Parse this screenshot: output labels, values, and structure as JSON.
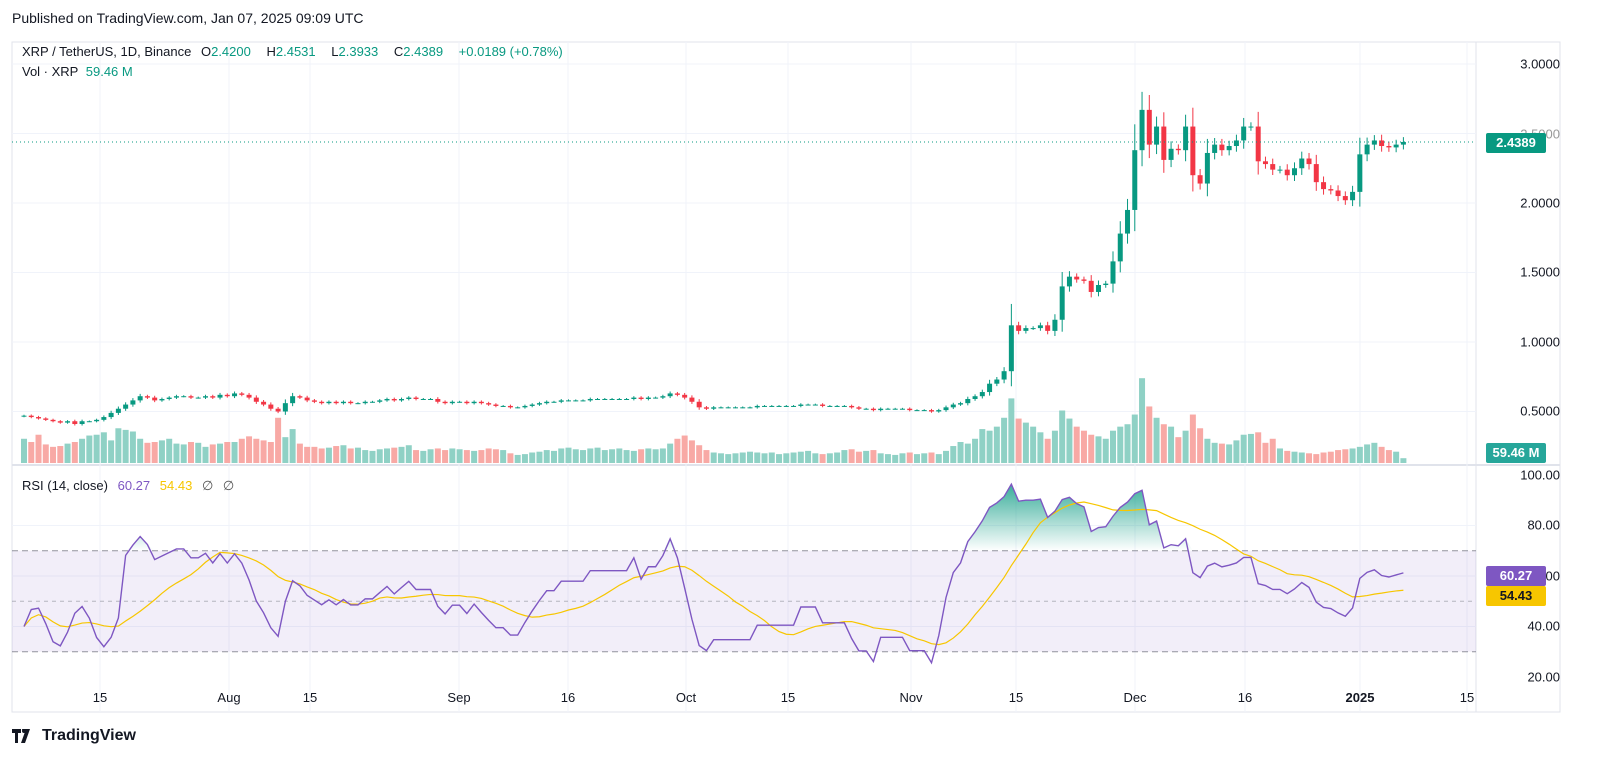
{
  "published": "Published on TradingView.com, Jan 07, 2025 09:09 UTC",
  "legend": {
    "symbol": "XRP / TetherUS, 1D, Binance",
    "o_label": "O",
    "o": "2.4200",
    "h_label": "H",
    "h": "2.4531",
    "l_label": "L",
    "l": "2.3933",
    "c_label": "C",
    "c": "2.4389",
    "change": "+0.0189 (+0.78%)",
    "vol_label": "Vol · XRP",
    "vol": "59.46 M"
  },
  "rsi_legend": {
    "label": "RSI (14, close)",
    "rsi": "60.27",
    "ma": "54.43",
    "na1": "∅",
    "na2": "∅"
  },
  "badges": {
    "price": "2.4389",
    "volume": "59.46 M",
    "rsi": "60.27",
    "rsi_ma": "54.43"
  },
  "footer": {
    "brand": "TradingView",
    "logo_text": "TV"
  },
  "colors": {
    "up": "#089981",
    "down": "#f23645",
    "vol_up": "#8fd1c5",
    "vol_down": "#f8a9a5",
    "rsi": "#7e57c2",
    "rsi_ma": "#f7c600"
  },
  "chart_data": {
    "type": "candlestick",
    "title": "XRP / TetherUS, 1D, Binance",
    "start_date": "2024-07-01",
    "end_date": "2025-01-07",
    "price_axis": [
      "3.0000",
      "2.5000",
      "2.0000",
      "1.5000",
      "1.0000",
      "0.5000"
    ],
    "rsi_axis": [
      "100.00",
      "80.00",
      "60.00",
      "40.00",
      "20.00"
    ],
    "x_ticks": [
      "15",
      "Aug",
      "15",
      "Sep",
      "16",
      "Oct",
      "15",
      "Nov",
      "15",
      "Dec",
      "16",
      "2025",
      "15"
    ],
    "rsi_levels": [
      70,
      50,
      30
    ],
    "rsi_period": 14,
    "close": [
      0.47,
      0.46,
      0.45,
      0.44,
      0.43,
      0.42,
      0.43,
      0.41,
      0.43,
      0.43,
      0.44,
      0.46,
      0.49,
      0.52,
      0.55,
      0.58,
      0.61,
      0.6,
      0.58,
      0.59,
      0.6,
      0.61,
      0.61,
      0.6,
      0.6,
      0.61,
      0.6,
      0.62,
      0.61,
      0.63,
      0.62,
      0.6,
      0.57,
      0.55,
      0.52,
      0.5,
      0.56,
      0.61,
      0.6,
      0.58,
      0.57,
      0.56,
      0.57,
      0.56,
      0.57,
      0.56,
      0.56,
      0.57,
      0.57,
      0.58,
      0.59,
      0.58,
      0.59,
      0.6,
      0.59,
      0.59,
      0.59,
      0.57,
      0.56,
      0.57,
      0.57,
      0.56,
      0.57,
      0.56,
      0.55,
      0.54,
      0.54,
      0.53,
      0.53,
      0.54,
      0.55,
      0.56,
      0.57,
      0.57,
      0.58,
      0.58,
      0.58,
      0.58,
      0.59,
      0.59,
      0.59,
      0.59,
      0.59,
      0.59,
      0.6,
      0.59,
      0.6,
      0.6,
      0.61,
      0.63,
      0.62,
      0.6,
      0.57,
      0.53,
      0.52,
      0.53,
      0.53,
      0.53,
      0.53,
      0.53,
      0.53,
      0.54,
      0.54,
      0.54,
      0.54,
      0.54,
      0.54,
      0.55,
      0.55,
      0.55,
      0.54,
      0.54,
      0.54,
      0.54,
      0.53,
      0.52,
      0.52,
      0.51,
      0.52,
      0.52,
      0.52,
      0.52,
      0.51,
      0.51,
      0.51,
      0.5,
      0.51,
      0.53,
      0.55,
      0.56,
      0.59,
      0.61,
      0.64,
      0.7,
      0.73,
      0.79,
      1.12,
      1.08,
      1.1,
      1.1,
      1.12,
      1.08,
      1.16,
      1.4,
      1.47,
      1.45,
      1.44,
      1.36,
      1.41,
      1.42,
      1.58,
      1.78,
      1.95,
      2.38,
      2.67,
      2.42,
      2.55,
      2.31,
      2.39,
      2.38,
      2.55,
      2.2,
      2.14,
      2.36,
      2.42,
      2.38,
      2.41,
      2.45,
      2.55,
      2.55,
      2.3,
      2.28,
      2.24,
      2.24,
      2.2,
      2.25,
      2.32,
      2.28,
      2.15,
      2.1,
      2.09,
      2.05,
      2.02,
      2.08,
      2.35,
      2.42,
      2.45,
      2.41,
      2.4,
      2.42,
      2.4389
    ],
    "volume_millions": [
      300,
      260,
      350,
      230,
      200,
      210,
      240,
      260,
      300,
      340,
      350,
      380,
      280,
      430,
      410,
      390,
      300,
      250,
      260,
      280,
      300,
      240,
      230,
      260,
      250,
      200,
      230,
      240,
      260,
      260,
      300,
      330,
      300,
      280,
      260,
      560,
      320,
      420,
      240,
      200,
      200,
      180,
      190,
      210,
      220,
      180,
      190,
      160,
      150,
      170,
      180,
      190,
      200,
      220,
      160,
      150,
      170,
      180,
      160,
      180,
      170,
      160,
      150,
      160,
      180,
      170,
      160,
      120,
      100,
      110,
      130,
      140,
      160,
      150,
      180,
      190,
      170,
      160,
      180,
      190,
      160,
      170,
      180,
      160,
      150,
      170,
      180,
      170,
      180,
      240,
      300,
      340,
      280,
      220,
      160,
      130,
      120,
      110,
      120,
      130,
      140,
      130,
      120,
      130,
      110,
      120,
      130,
      140,
      150,
      120,
      110,
      120,
      130,
      160,
      170,
      140,
      150,
      160,
      120,
      110,
      100,
      120,
      130,
      110,
      120,
      130,
      110,
      150,
      210,
      260,
      240,
      300,
      420,
      400,
      450,
      560,
      800,
      550,
      500,
      450,
      380,
      300,
      400,
      650,
      550,
      450,
      400,
      350,
      330,
      300,
      400,
      450,
      480,
      600,
      1050,
      700,
      560,
      480,
      450,
      320,
      400,
      600,
      430,
      300,
      250,
      240,
      230,
      280,
      350,
      360,
      380,
      250,
      300,
      180,
      150,
      140,
      130,
      120,
      110,
      130,
      140,
      160,
      170,
      180,
      200,
      230,
      250,
      200,
      160,
      140,
      59.46
    ]
  }
}
